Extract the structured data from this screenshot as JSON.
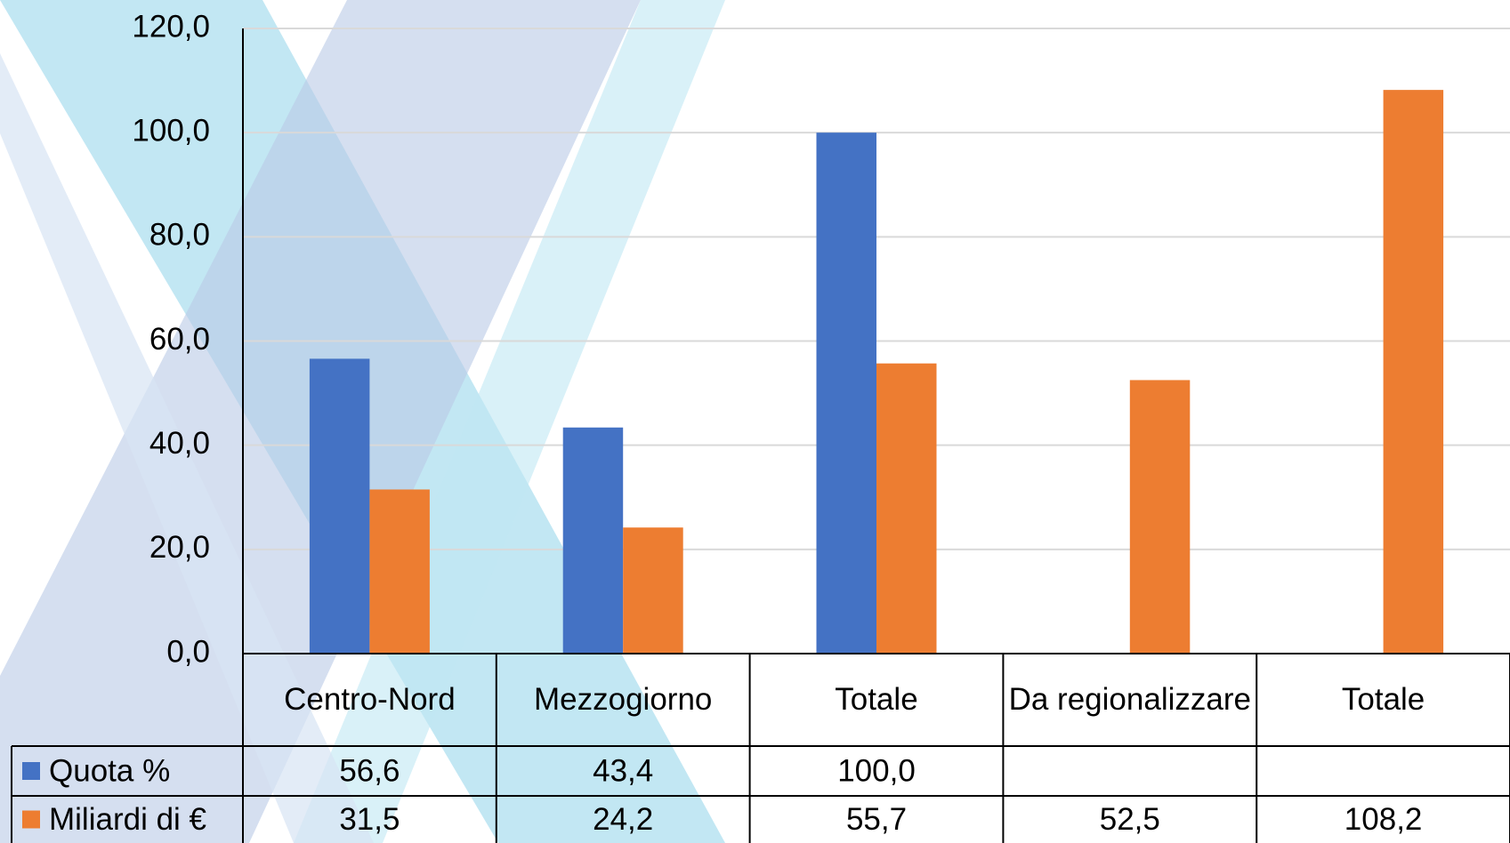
{
  "chart_data": {
    "type": "bar",
    "categories": [
      "Centro-Nord",
      "Mezzogiorno",
      "Totale",
      "Da regionalizzare",
      "Totale"
    ],
    "series": [
      {
        "name": "Quota %",
        "color": "#4472c4",
        "values": [
          56.6,
          43.4,
          100.0,
          null,
          null
        ],
        "value_labels": [
          "56,6",
          "43,4",
          "100,0",
          null,
          null
        ]
      },
      {
        "name": "Miliardi di €",
        "color": "#ed7d31",
        "values": [
          31.5,
          24.2,
          55.7,
          52.5,
          108.2
        ],
        "value_labels": [
          "31,5",
          "24,2",
          "55,7",
          "52,5",
          "108,2"
        ]
      }
    ],
    "ylim": [
      0,
      120
    ],
    "yticks": [
      {
        "value": 0,
        "label": "0,0"
      },
      {
        "value": 20,
        "label": "20,0"
      },
      {
        "value": 40,
        "label": "40,0"
      },
      {
        "value": 60,
        "label": "60,0"
      },
      {
        "value": 80,
        "label": "80,0"
      },
      {
        "value": 100,
        "label": "100,0"
      },
      {
        "value": 120,
        "label": "120,0"
      }
    ],
    "grid": true,
    "data_table": true
  }
}
